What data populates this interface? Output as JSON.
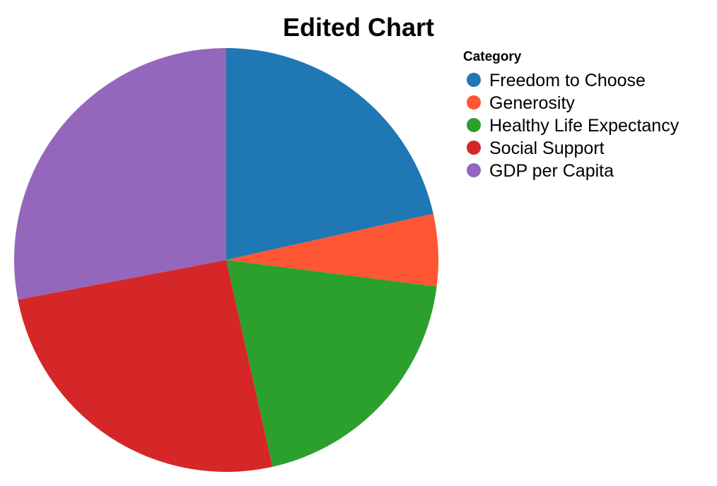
{
  "chart_data": {
    "type": "pie",
    "title": "Edited Chart",
    "legend": {
      "title": "Category",
      "placement": "right"
    },
    "slices": [
      {
        "label": "Freedom to Choose",
        "value": 21.5,
        "color": "#1f77b4"
      },
      {
        "label": "Generosity",
        "value": 5.5,
        "color": "#ff5733"
      },
      {
        "label": "Healthy Life Expectancy",
        "value": 19.5,
        "color": "#2ca02c"
      },
      {
        "label": "Social Support",
        "value": 25.5,
        "color": "#d62728"
      },
      {
        "label": "GDP per Capita",
        "value": 28.0,
        "color": "#9467bd"
      }
    ]
  }
}
